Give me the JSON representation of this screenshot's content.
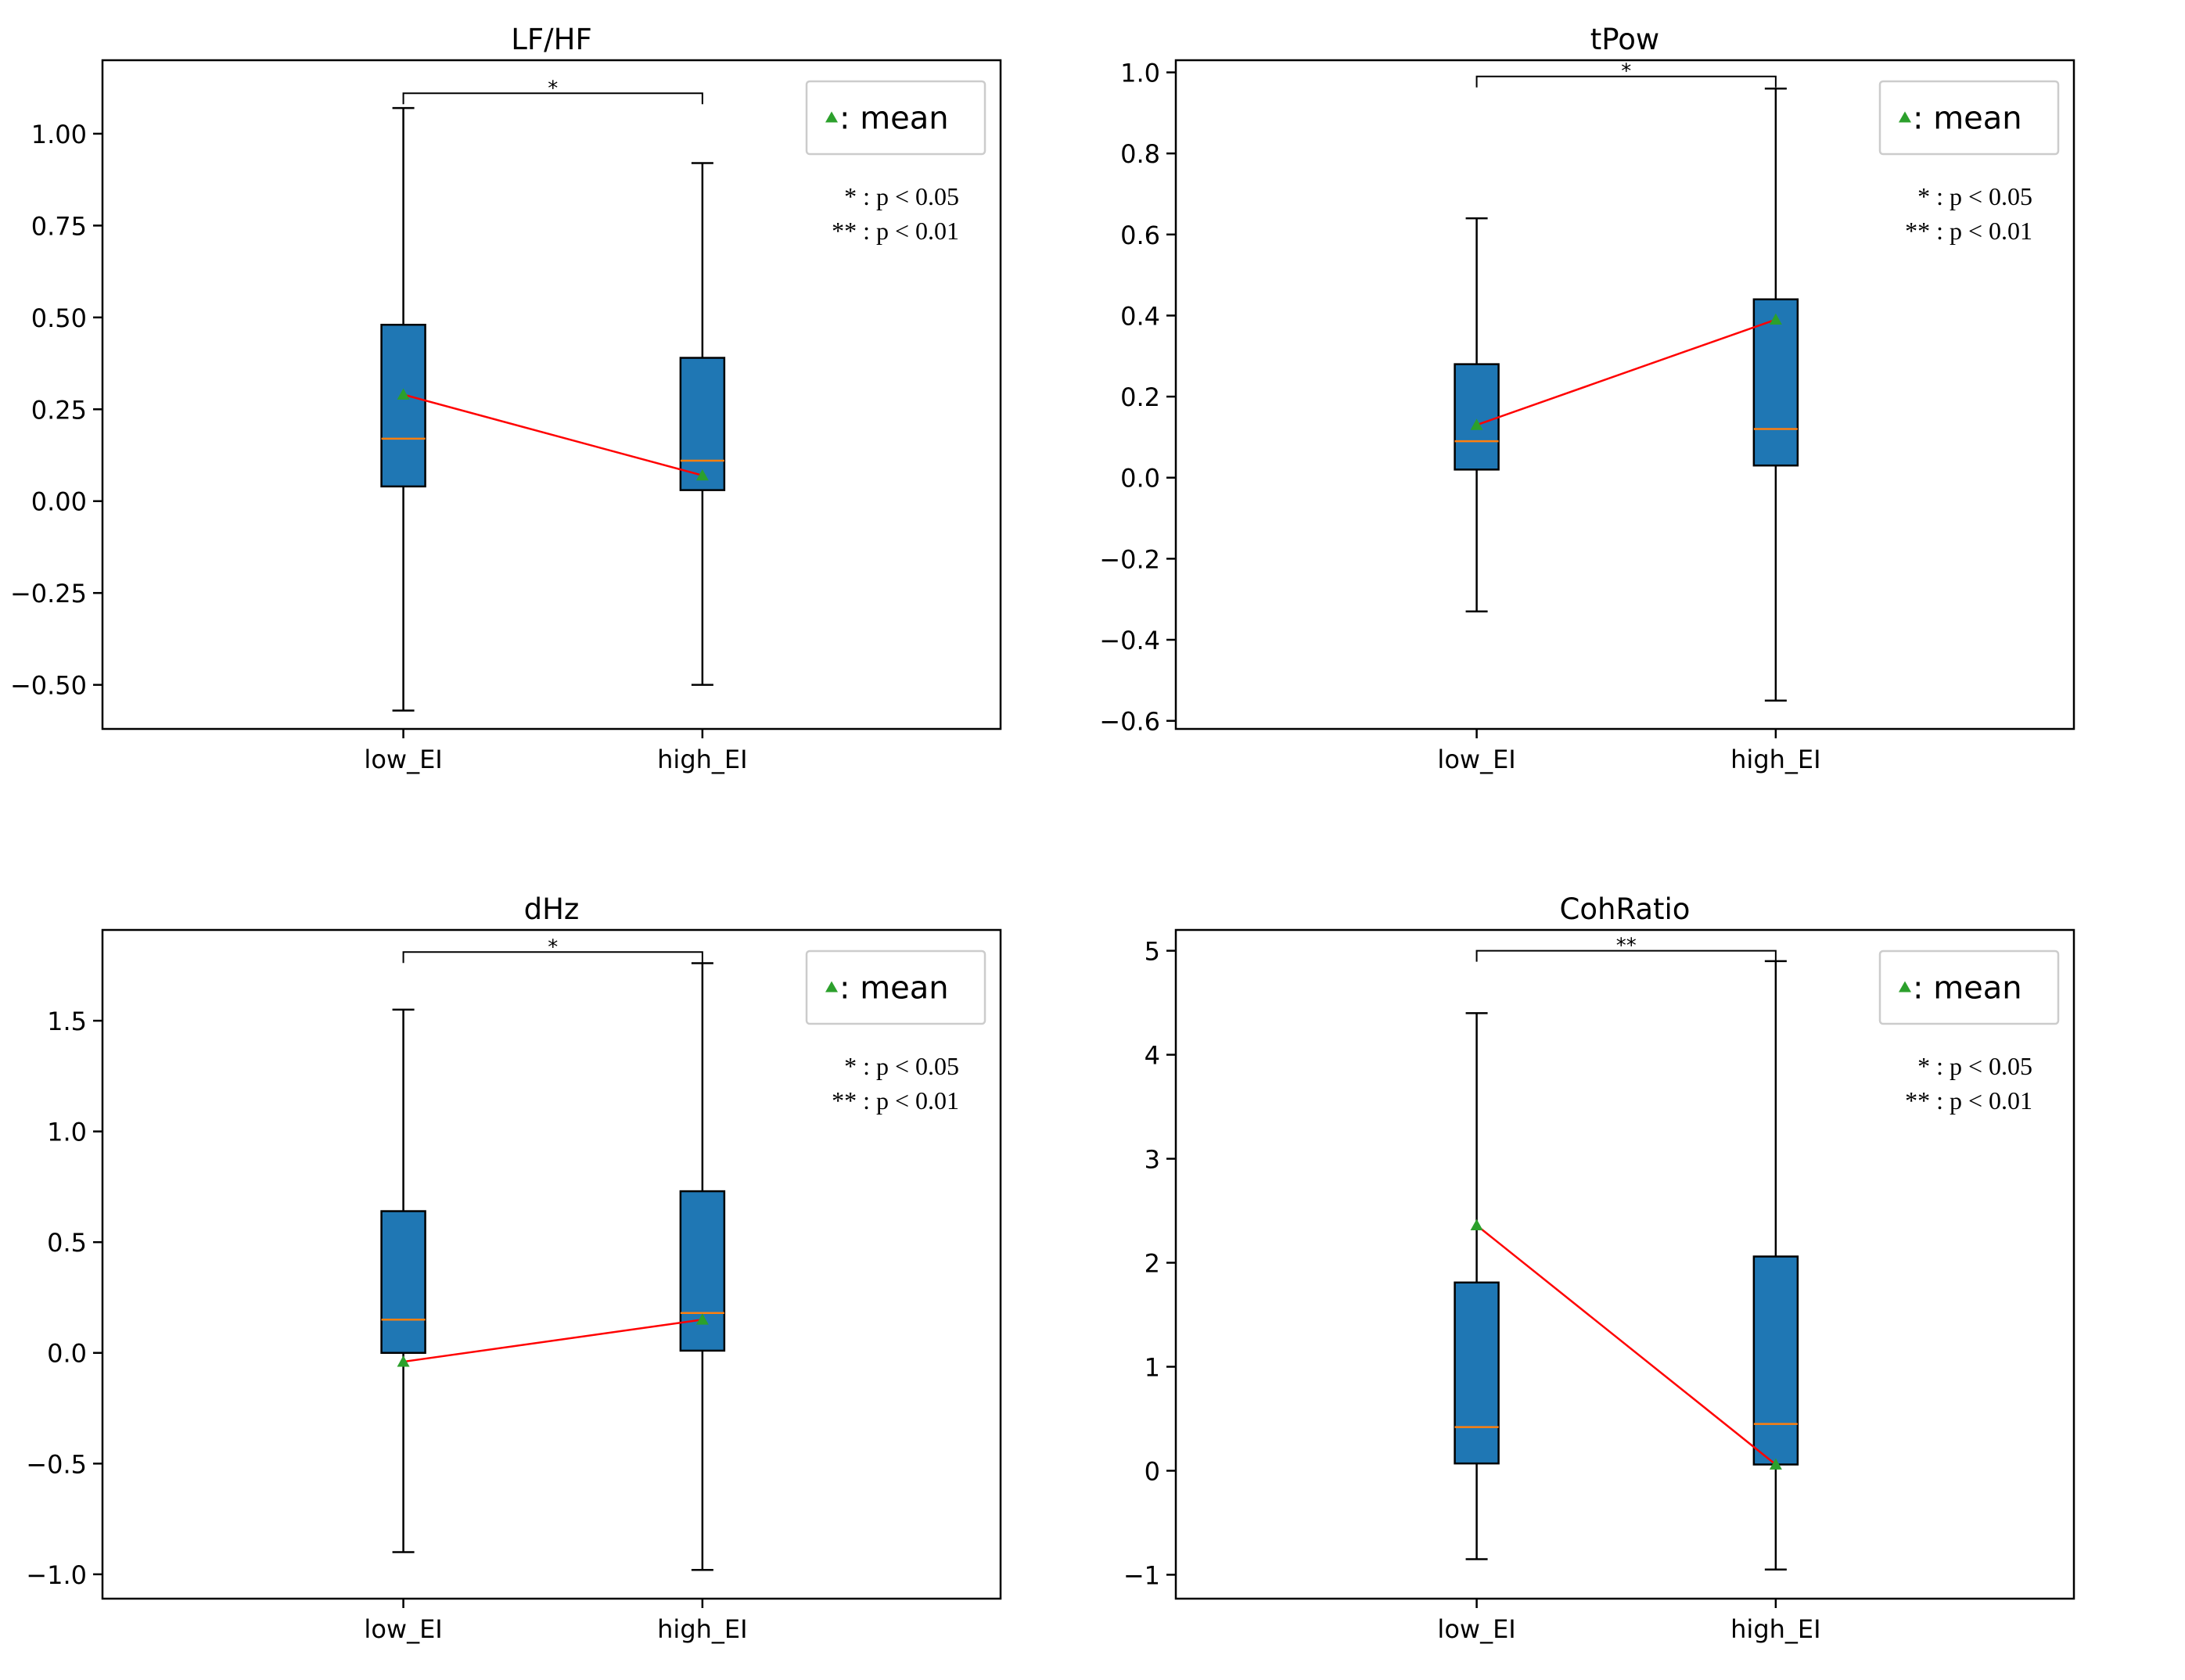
{
  "figure": {
    "colors": {
      "box_fill": "#1f77b4",
      "median": "#ff7f0e",
      "mean_marker": "#2ca02c",
      "mean_line": "#ff0000",
      "axes": "#000000",
      "legend_border": "#cccccc"
    },
    "legend": {
      "marker_label": ": mean"
    },
    "significance_note": [
      "* : p < 0.05",
      "** : p < 0.01"
    ]
  },
  "chart_data": [
    {
      "type": "box",
      "title": "LF/HF",
      "categories": [
        "low_EI",
        "high_EI"
      ],
      "ylim": [
        -0.62,
        1.2
      ],
      "yticks": [
        -0.5,
        -0.25,
        0.0,
        0.25,
        0.5,
        0.75,
        1.0
      ],
      "ytick_labels": [
        "−0.50",
        "−0.25",
        "0.00",
        "0.25",
        "0.50",
        "0.75",
        "1.00"
      ],
      "boxes": [
        {
          "whisker_low": -0.57,
          "q1": 0.04,
          "median": 0.17,
          "q3": 0.48,
          "whisker_high": 1.07,
          "mean": 0.29
        },
        {
          "whisker_low": -0.5,
          "q1": 0.03,
          "median": 0.11,
          "q3": 0.39,
          "whisker_high": 0.92,
          "mean": 0.07
        }
      ],
      "significance": "*",
      "bracket_y": 1.11
    },
    {
      "type": "box",
      "title": "tPow",
      "categories": [
        "low_EI",
        "high_EI"
      ],
      "ylim": [
        -0.62,
        1.03
      ],
      "yticks": [
        -0.6,
        -0.4,
        -0.2,
        0.0,
        0.2,
        0.4,
        0.6,
        0.8,
        1.0
      ],
      "ytick_labels": [
        "−0.6",
        "−0.4",
        "−0.2",
        "0.0",
        "0.2",
        "0.4",
        "0.6",
        "0.8",
        "1.0"
      ],
      "boxes": [
        {
          "whisker_low": -0.33,
          "q1": 0.02,
          "median": 0.09,
          "q3": 0.28,
          "whisker_high": 0.64,
          "mean": 0.13
        },
        {
          "whisker_low": -0.55,
          "q1": 0.03,
          "median": 0.12,
          "q3": 0.44,
          "whisker_high": 0.96,
          "mean": 0.39
        }
      ],
      "significance": "*",
      "bracket_y": 0.99
    },
    {
      "type": "box",
      "title": "dHz",
      "categories": [
        "low_EI",
        "high_EI"
      ],
      "ylim": [
        -1.11,
        1.91
      ],
      "yticks": [
        -1.0,
        -0.5,
        0.0,
        0.5,
        1.0,
        1.5
      ],
      "ytick_labels": [
        "−1.0",
        "−0.5",
        "0.0",
        "0.5",
        "1.0",
        "1.5"
      ],
      "boxes": [
        {
          "whisker_low": -0.9,
          "q1": 0.0,
          "median": 0.15,
          "q3": 0.64,
          "whisker_high": 1.55,
          "mean": -0.04
        },
        {
          "whisker_low": -0.98,
          "q1": 0.01,
          "median": 0.18,
          "q3": 0.73,
          "whisker_high": 1.76,
          "mean": 0.15
        }
      ],
      "significance": "*",
      "bracket_y": 1.81
    },
    {
      "type": "box",
      "title": "CohRatio",
      "categories": [
        "low_EI",
        "high_EI"
      ],
      "ylim": [
        -1.23,
        5.2
      ],
      "yticks": [
        -1,
        0,
        1,
        2,
        3,
        4,
        5
      ],
      "ytick_labels": [
        "−1",
        "0",
        "1",
        "2",
        "3",
        "4",
        "5"
      ],
      "boxes": [
        {
          "whisker_low": -0.85,
          "q1": 0.07,
          "median": 0.42,
          "q3": 1.81,
          "whisker_high": 4.4,
          "mean": 2.36
        },
        {
          "whisker_low": -0.95,
          "q1": 0.06,
          "median": 0.45,
          "q3": 2.06,
          "whisker_high": 4.9,
          "mean": 0.06
        }
      ],
      "significance": "**",
      "bracket_y": 5.0
    }
  ]
}
